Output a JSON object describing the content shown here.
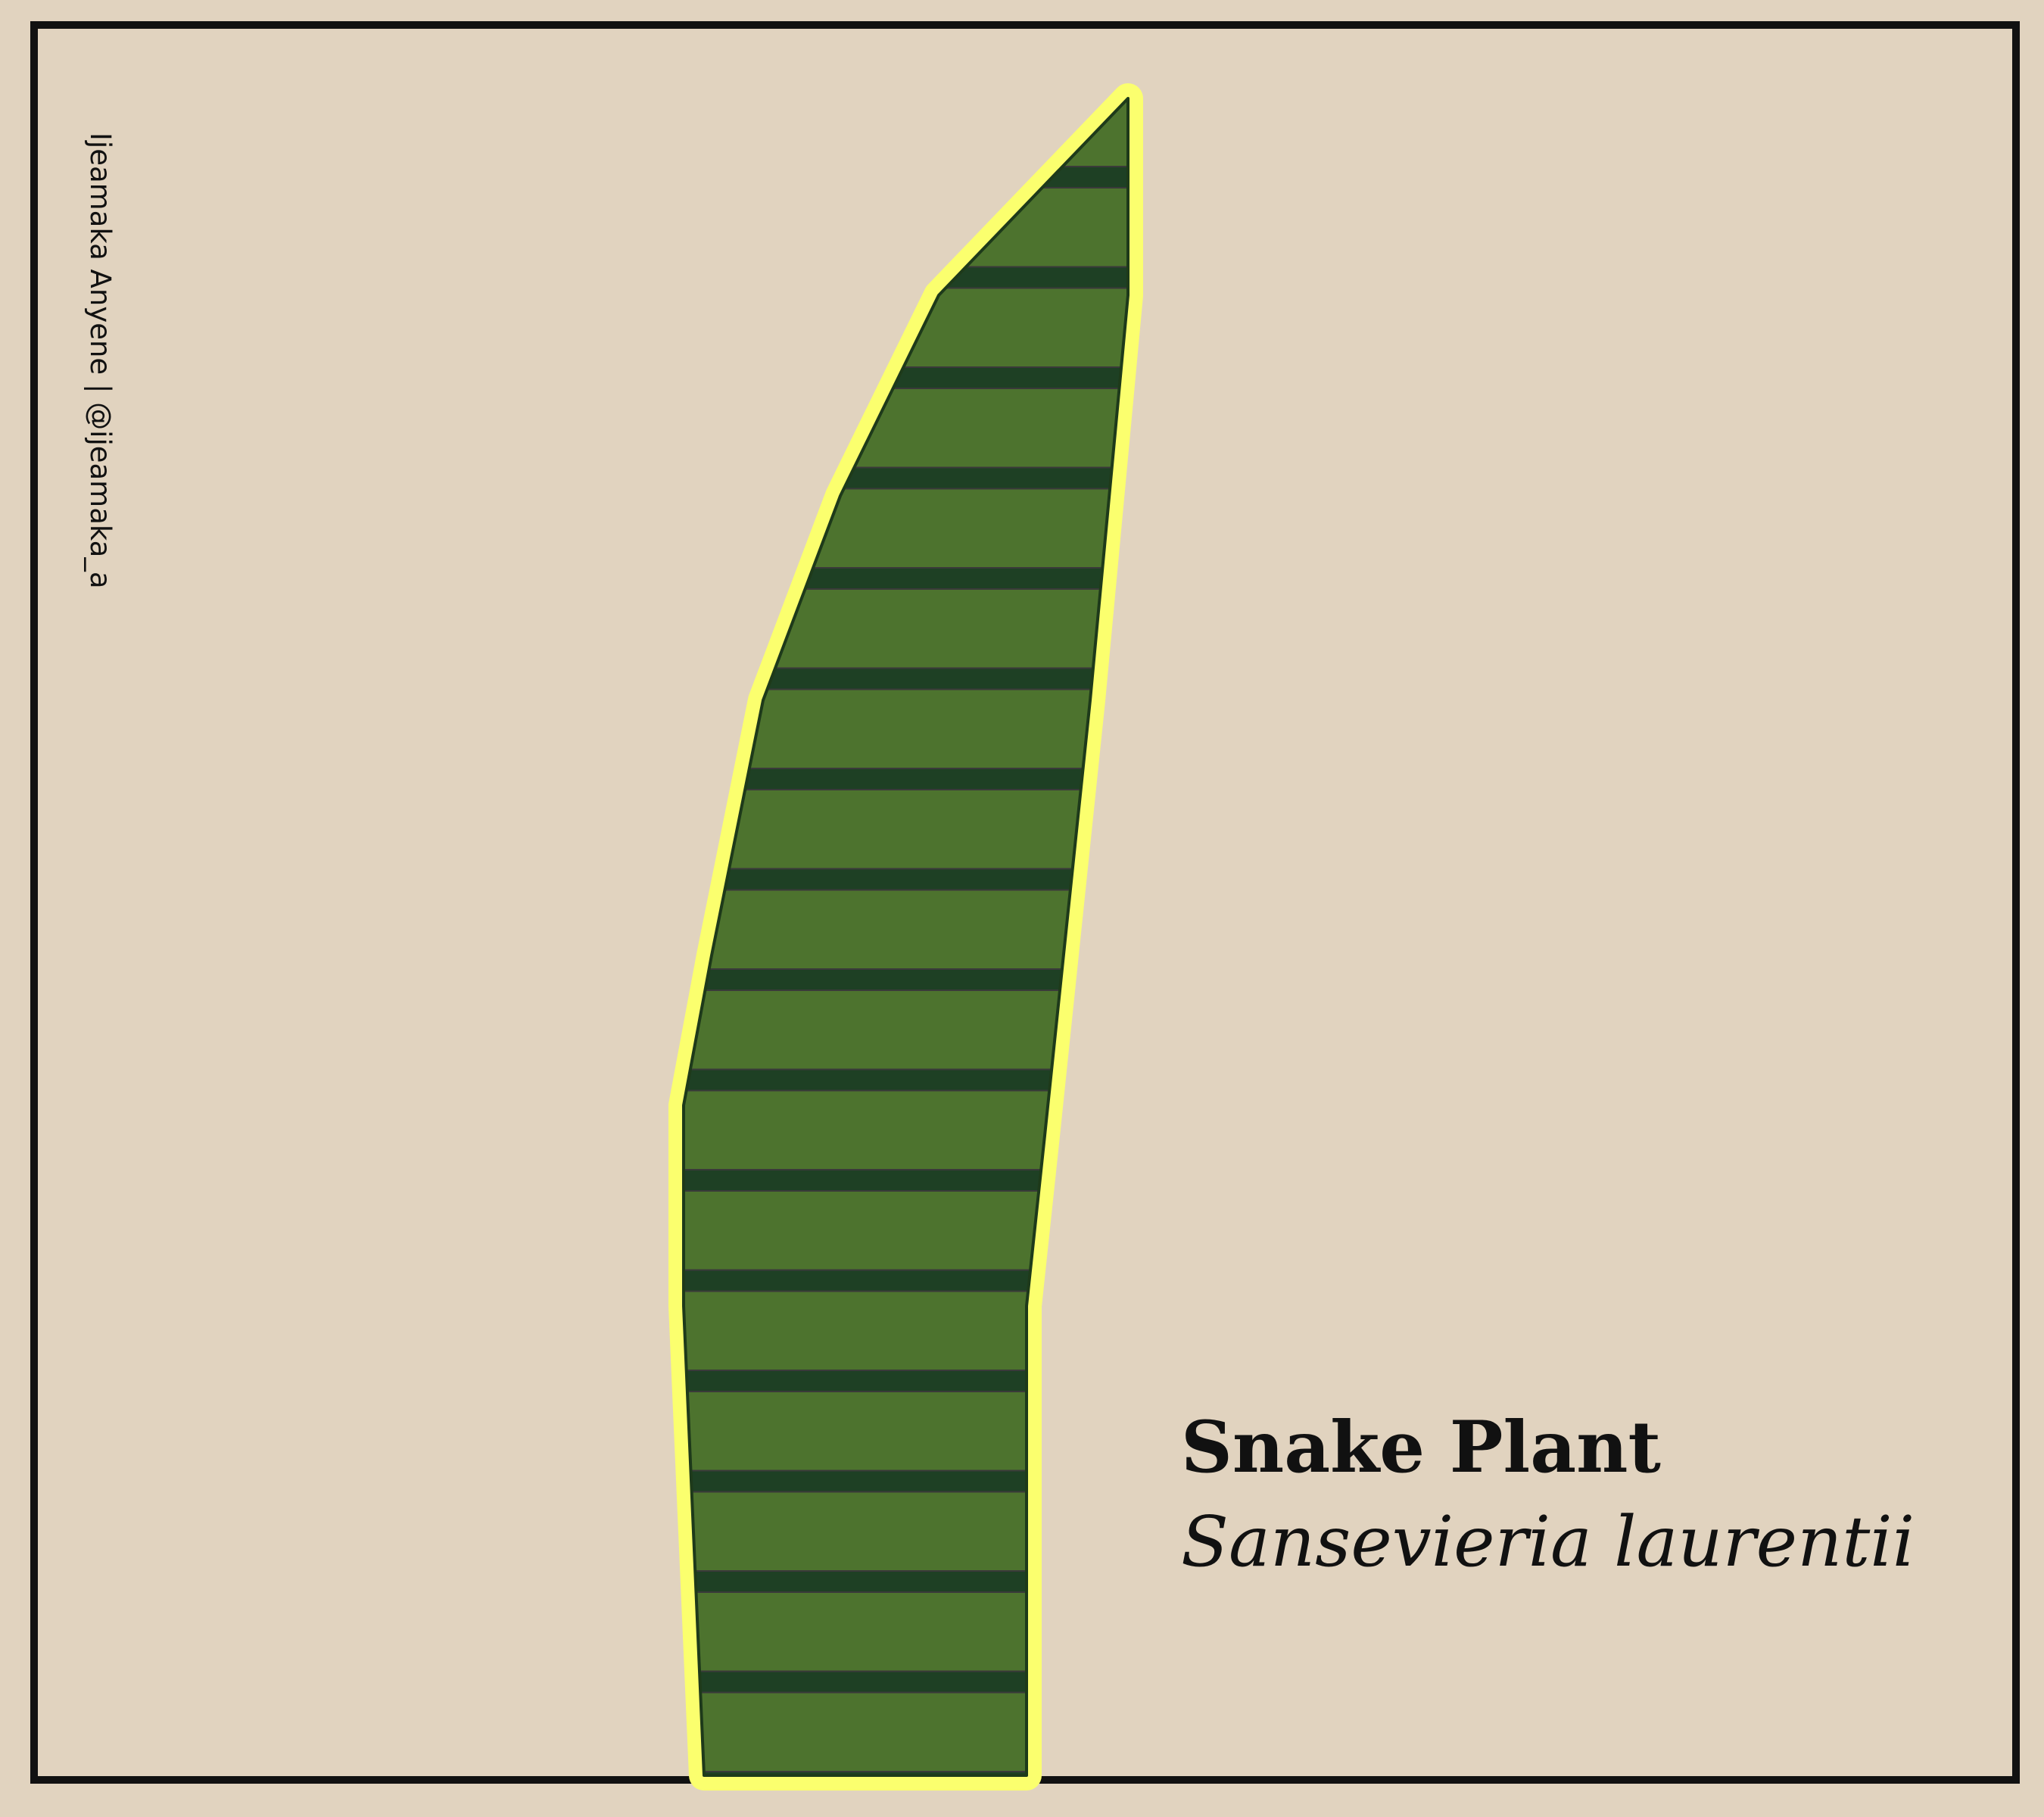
{
  "credit": "Ijeamaka Anyene | @ijeamaka_a",
  "common_name": "Snake Plant",
  "scientific_name": "Sansevieria laurentii",
  "colors": {
    "background": "#e1d3bf",
    "frame": "#111111",
    "leaf_fill": "#4d732e",
    "leaf_band": "#1e4024",
    "leaf_outline": "#fbff6e",
    "text": "#111111"
  }
}
